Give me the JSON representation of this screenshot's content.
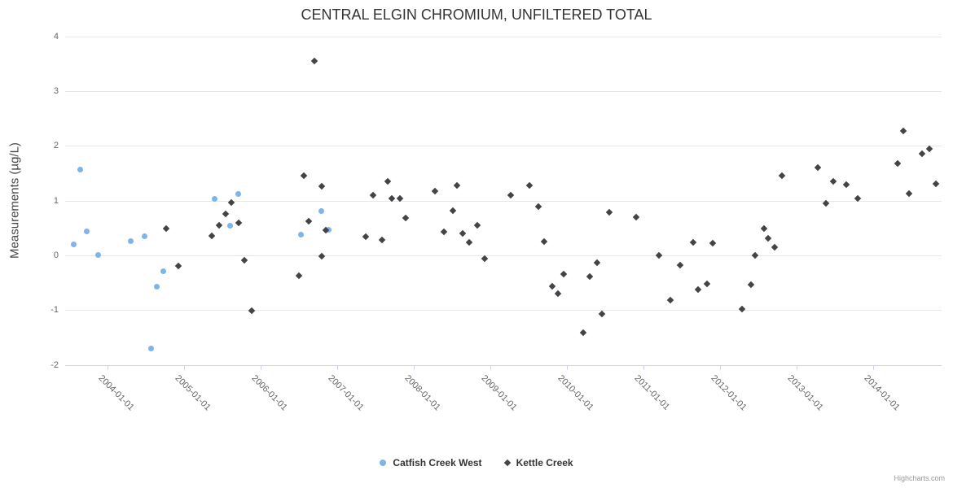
{
  "chart": {
    "credits": "Highcharts.com"
  },
  "colors": {
    "series_catfish": "#7cb5ec",
    "series_kettle": "#434348",
    "gridline": "#e6e6e6",
    "axis_line": "#ccd6eb",
    "tick_label": "#666666",
    "title_text": "#333333"
  },
  "chart_data": {
    "type": "scatter",
    "title": "CENTRAL ELGIN CHROMIUM, UNFILTERED TOTAL",
    "xlabel": "",
    "ylabel": "Measurements (µg/L)",
    "ylim": [
      -2,
      4
    ],
    "yticks": [
      -2,
      -1,
      0,
      1,
      2,
      3,
      4
    ],
    "xticks": [
      "2004-01-01",
      "2005-01-01",
      "2006-01-01",
      "2007-01-01",
      "2008-01-01",
      "2009-01-01",
      "2010-01-01",
      "2011-01-01",
      "2012-01-01",
      "2013-01-01",
      "2014-01-01"
    ],
    "grid": "horizontal-only",
    "legend_position": "bottom-center",
    "series": [
      {
        "name": "Catfish Creek West",
        "marker": "circle",
        "color": "#7cb5ec",
        "points": [
          {
            "date": "2003-07-25",
            "value": 0.21
          },
          {
            "date": "2003-08-25",
            "value": 1.57
          },
          {
            "date": "2003-09-25",
            "value": 0.44
          },
          {
            "date": "2003-11-18",
            "value": 0.01
          },
          {
            "date": "2004-04-22",
            "value": 0.26
          },
          {
            "date": "2004-06-24",
            "value": 0.35
          },
          {
            "date": "2004-07-25",
            "value": -1.7
          },
          {
            "date": "2004-08-25",
            "value": -0.56
          },
          {
            "date": "2004-09-25",
            "value": -0.28
          },
          {
            "date": "2005-05-27",
            "value": 1.04
          },
          {
            "date": "2005-08-06",
            "value": 0.55
          },
          {
            "date": "2005-09-17",
            "value": 1.13
          },
          {
            "date": "2006-07-13",
            "value": 0.39
          },
          {
            "date": "2006-10-18",
            "value": 0.82
          },
          {
            "date": "2006-11-22",
            "value": 0.48
          }
        ]
      },
      {
        "name": "Kettle Creek",
        "marker": "diamond",
        "color": "#434348",
        "points": [
          {
            "date": "2004-10-06",
            "value": 0.5
          },
          {
            "date": "2004-12-03",
            "value": -0.19
          },
          {
            "date": "2005-05-13",
            "value": 0.36
          },
          {
            "date": "2005-06-17",
            "value": 0.55
          },
          {
            "date": "2005-07-18",
            "value": 0.76
          },
          {
            "date": "2005-08-14",
            "value": 0.97
          },
          {
            "date": "2005-09-17",
            "value": 0.6
          },
          {
            "date": "2005-10-14",
            "value": -0.09
          },
          {
            "date": "2005-11-18",
            "value": -1.01
          },
          {
            "date": "2006-07-02",
            "value": -0.37
          },
          {
            "date": "2006-07-25",
            "value": 1.46
          },
          {
            "date": "2006-08-17",
            "value": 0.63
          },
          {
            "date": "2006-09-13",
            "value": 3.55
          },
          {
            "date": "2006-10-18",
            "value": 1.26
          },
          {
            "date": "2006-10-19",
            "value": -0.01
          },
          {
            "date": "2006-11-07",
            "value": 0.46
          },
          {
            "date": "2007-05-16",
            "value": 0.35
          },
          {
            "date": "2007-06-20",
            "value": 1.1
          },
          {
            "date": "2007-08-01",
            "value": 0.28
          },
          {
            "date": "2007-08-29",
            "value": 1.36
          },
          {
            "date": "2007-09-17",
            "value": 1.05
          },
          {
            "date": "2007-10-26",
            "value": 1.05
          },
          {
            "date": "2007-11-22",
            "value": 0.69
          },
          {
            "date": "2008-04-11",
            "value": 1.18
          },
          {
            "date": "2008-05-24",
            "value": 0.43
          },
          {
            "date": "2008-07-05",
            "value": 0.82
          },
          {
            "date": "2008-07-24",
            "value": 1.28
          },
          {
            "date": "2008-08-20",
            "value": 0.4
          },
          {
            "date": "2008-09-21",
            "value": 0.24
          },
          {
            "date": "2008-10-30",
            "value": 0.55
          },
          {
            "date": "2008-12-04",
            "value": -0.05
          },
          {
            "date": "2009-04-07",
            "value": 1.1
          },
          {
            "date": "2009-07-05",
            "value": 1.28
          },
          {
            "date": "2009-08-16",
            "value": 0.9
          },
          {
            "date": "2009-09-13",
            "value": 0.26
          },
          {
            "date": "2009-10-22",
            "value": -0.56
          },
          {
            "date": "2009-11-18",
            "value": -0.69
          },
          {
            "date": "2009-12-15",
            "value": -0.34
          },
          {
            "date": "2010-03-19",
            "value": -1.41
          },
          {
            "date": "2010-04-19",
            "value": -0.38
          },
          {
            "date": "2010-05-24",
            "value": -0.13
          },
          {
            "date": "2010-06-16",
            "value": -1.07
          },
          {
            "date": "2010-07-21",
            "value": 0.79
          },
          {
            "date": "2010-11-26",
            "value": 0.71
          },
          {
            "date": "2011-03-15",
            "value": 0.0
          },
          {
            "date": "2011-05-08",
            "value": -0.81
          },
          {
            "date": "2011-06-23",
            "value": -0.18
          },
          {
            "date": "2011-08-25",
            "value": 0.24
          },
          {
            "date": "2011-09-17",
            "value": -0.62
          },
          {
            "date": "2011-10-30",
            "value": -0.51
          },
          {
            "date": "2011-11-26",
            "value": 0.23
          },
          {
            "date": "2012-04-14",
            "value": -0.97
          },
          {
            "date": "2012-05-27",
            "value": -0.53
          },
          {
            "date": "2012-06-16",
            "value": 0.0
          },
          {
            "date": "2012-07-28",
            "value": 0.49
          },
          {
            "date": "2012-08-17",
            "value": 0.32
          },
          {
            "date": "2012-09-17",
            "value": 0.15
          },
          {
            "date": "2012-10-22",
            "value": 1.46
          },
          {
            "date": "2013-04-11",
            "value": 1.61
          },
          {
            "date": "2013-05-20",
            "value": 0.96
          },
          {
            "date": "2013-06-24",
            "value": 1.35
          },
          {
            "date": "2013-08-25",
            "value": 1.3
          },
          {
            "date": "2013-10-19",
            "value": 1.05
          },
          {
            "date": "2014-04-26",
            "value": 1.69
          },
          {
            "date": "2014-05-23",
            "value": 2.28
          },
          {
            "date": "2014-06-20",
            "value": 1.13
          },
          {
            "date": "2014-08-20",
            "value": 1.86
          },
          {
            "date": "2014-09-25",
            "value": 1.95
          },
          {
            "date": "2014-10-26",
            "value": 1.31
          }
        ]
      }
    ]
  }
}
